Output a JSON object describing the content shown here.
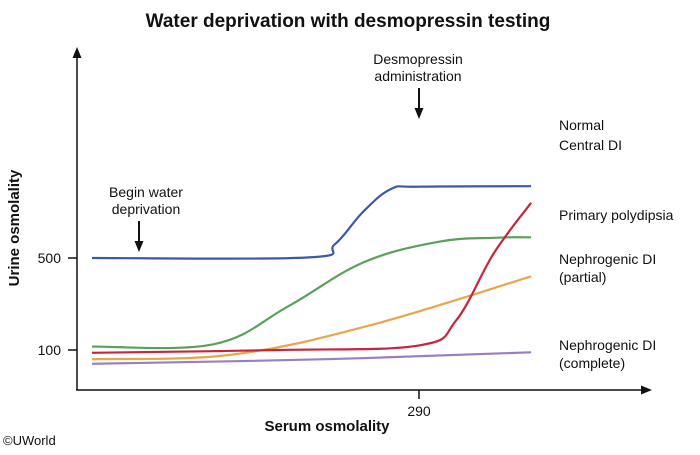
{
  "chart_data": {
    "type": "line",
    "title": "Water deprivation with desmopressin testing",
    "xlabel": "Serum osmolality",
    "ylabel": "Urine osmolality",
    "x_ticks": [
      {
        "value": 290,
        "label": "290"
      }
    ],
    "y_ticks": [
      {
        "value": 100,
        "label": "100"
      },
      {
        "value": 500,
        "label": "500"
      }
    ],
    "grid": false,
    "legend": "labels at right end of each line",
    "series": [
      {
        "name": "Normal",
        "color": "#3a5aa8",
        "points": [
          [
            255,
            500
          ],
          [
            278,
            502
          ],
          [
            281,
            560
          ],
          [
            284,
            700
          ],
          [
            287,
            800
          ],
          [
            290,
            810
          ],
          [
            302,
            812
          ]
        ]
      },
      {
        "name": "Central DI",
        "color": "#c8243c",
        "points": [
          [
            255,
            88
          ],
          [
            275,
            100
          ],
          [
            290,
            120
          ],
          [
            294,
            230
          ],
          [
            298,
            520
          ],
          [
            302,
            740
          ]
        ]
      },
      {
        "name": "Primary polydipsia",
        "color": "#5aa05a",
        "points": [
          [
            255,
            115
          ],
          [
            268,
            125
          ],
          [
            276,
            290
          ],
          [
            284,
            480
          ],
          [
            292,
            570
          ],
          [
            298,
            588
          ],
          [
            302,
            590
          ]
        ]
      },
      {
        "name": "Nephrogenic DI (partial)",
        "color": "#e8a64a",
        "points": [
          [
            255,
            60
          ],
          [
            270,
            80
          ],
          [
            285,
            210
          ],
          [
            302,
            420
          ]
        ]
      },
      {
        "name": "Nephrogenic DI (complete)",
        "color": "#9a7fc0",
        "points": [
          [
            255,
            40
          ],
          [
            280,
            60
          ],
          [
            302,
            90
          ]
        ]
      }
    ],
    "series_labels": [
      {
        "key": "normal",
        "text": "Normal"
      },
      {
        "key": "central",
        "text": "Central DI"
      },
      {
        "key": "polydipsia",
        "text": "Primary polydipsia"
      },
      {
        "key": "neph_partial",
        "lines": [
          "Nephrogenic DI",
          "(partial)"
        ]
      },
      {
        "key": "neph_complete",
        "lines": [
          "Nephrogenic DI",
          "(complete)"
        ]
      }
    ],
    "annotations": [
      {
        "lines": [
          "Begin water",
          "deprivation"
        ],
        "points_to_x": 260
      },
      {
        "lines": [
          "Desmopressin",
          "administration"
        ],
        "points_to_x": 290
      }
    ]
  },
  "copyright": "©UWorld"
}
